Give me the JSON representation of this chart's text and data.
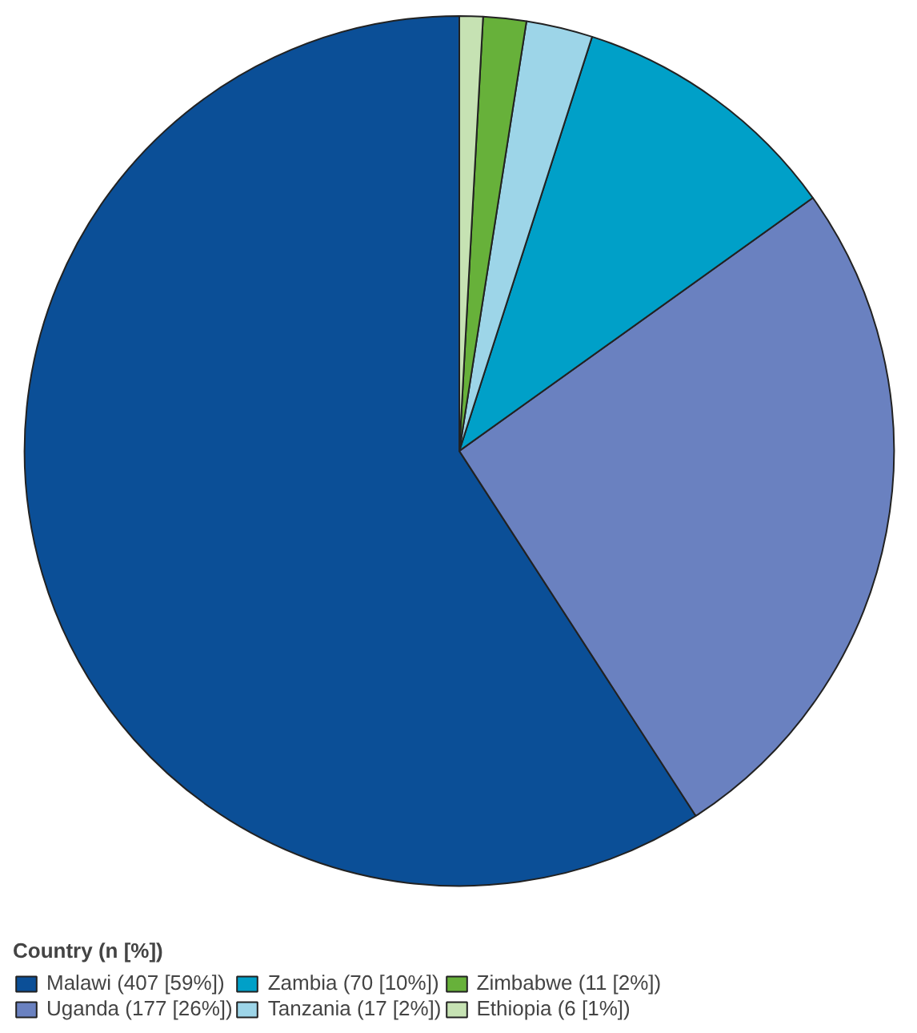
{
  "chart_data": {
    "type": "pie",
    "legend_title": "Country (n [%])",
    "categories": [
      "Malawi (407 [59%])",
      "Uganda (177 [26%])",
      "Zambia (70 [10%])",
      "Tanzania (17 [2%])",
      "Zimbabwe (11 [2%])",
      "Ethiopia (6 [1%])"
    ],
    "values": [
      407,
      177,
      70,
      17,
      11,
      6
    ],
    "colors": [
      "#0b4f97",
      "#6a81c0",
      "#00a0c8",
      "#9dd5e8",
      "#67b13a",
      "#c6e2b3"
    ],
    "legend": "bottom left"
  }
}
